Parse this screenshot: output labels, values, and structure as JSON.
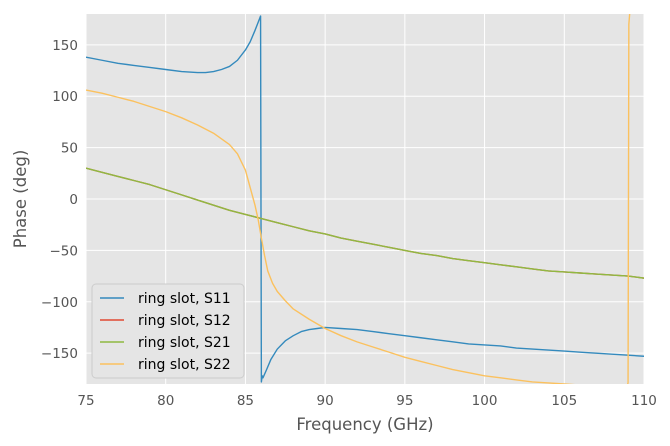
{
  "chart_data": {
    "type": "line",
    "title": "",
    "xlabel": "Frequency (GHz)",
    "ylabel": "Phase (deg)",
    "xlim": [
      75,
      110
    ],
    "ylim": [
      -180,
      180
    ],
    "xticks": [
      75,
      80,
      85,
      90,
      95,
      100,
      105,
      110
    ],
    "yticks": [
      -150,
      -100,
      -50,
      0,
      50,
      100,
      150
    ],
    "grid": true,
    "legend_position": "lower-left",
    "series": [
      {
        "name": "ring slot, S11",
        "color": "#348ABD",
        "x": [
          75,
          76,
          77,
          78,
          79,
          80,
          81,
          82,
          82.5,
          83,
          83.5,
          84,
          84.5,
          85,
          85.3,
          85.6,
          85.8,
          85.95,
          86.0,
          86.05,
          86.1,
          86.3,
          86.6,
          87,
          87.5,
          88,
          88.5,
          89,
          89.5,
          90,
          91,
          92,
          93,
          94,
          95,
          96,
          97,
          98,
          99,
          100,
          101,
          102,
          103,
          104,
          105,
          106,
          107,
          108,
          109,
          110
        ],
        "y": [
          138,
          135,
          132,
          130,
          128,
          126,
          124,
          123,
          123,
          124,
          126,
          129,
          135,
          145,
          153,
          164,
          172,
          178,
          -178,
          -172,
          -174,
          -167,
          -156,
          -146,
          -138,
          -133,
          -129,
          -127,
          -126,
          -125,
          -126,
          -127,
          -129,
          -131,
          -133,
          -135,
          -137,
          -139,
          -141,
          -142,
          -143,
          -145,
          -146,
          -147,
          -148,
          -149,
          -150,
          -151,
          -152,
          -153
        ]
      },
      {
        "name": "ring slot, S12",
        "color": "#E24A33",
        "x": [
          75,
          76,
          77,
          78,
          79,
          80,
          81,
          82,
          83,
          84,
          85,
          86,
          87,
          88,
          89,
          90,
          91,
          92,
          93,
          94,
          95,
          96,
          97,
          98,
          99,
          100,
          101,
          102,
          103,
          104,
          105,
          106,
          107,
          108,
          109,
          110
        ],
        "y": [
          30,
          26,
          22,
          18,
          14,
          9,
          4,
          -1,
          -6,
          -11,
          -15,
          -19,
          -23,
          -27,
          -31,
          -34,
          -38,
          -41,
          -44,
          -47,
          -50,
          -53,
          -55,
          -58,
          -60,
          -62,
          -64,
          -66,
          -68,
          -70,
          -71,
          -72,
          -73,
          -74,
          -75,
          -77
        ]
      },
      {
        "name": "ring slot, S21",
        "color": "#8EBA42",
        "x": [
          75,
          76,
          77,
          78,
          79,
          80,
          81,
          82,
          83,
          84,
          85,
          86,
          87,
          88,
          89,
          90,
          91,
          92,
          93,
          94,
          95,
          96,
          97,
          98,
          99,
          100,
          101,
          102,
          103,
          104,
          105,
          106,
          107,
          108,
          109,
          110
        ],
        "y": [
          30,
          26,
          22,
          18,
          14,
          9,
          4,
          -1,
          -6,
          -11,
          -15,
          -19,
          -23,
          -27,
          -31,
          -34,
          -38,
          -41,
          -44,
          -47,
          -50,
          -53,
          -55,
          -58,
          -60,
          -62,
          -64,
          -66,
          -68,
          -70,
          -71,
          -72,
          -73,
          -74,
          -75,
          -77
        ]
      },
      {
        "name": "ring slot, S22",
        "color": "#FBC15E",
        "x": [
          75,
          76,
          77,
          78,
          79,
          80,
          81,
          82,
          83,
          84,
          84.5,
          85,
          85.3,
          85.6,
          85.8,
          86.0,
          86.2,
          86.4,
          86.7,
          87,
          87.5,
          88,
          89,
          90,
          91,
          92,
          93,
          94,
          95,
          96,
          97,
          98,
          99,
          100,
          101,
          102,
          103,
          104,
          105,
          106,
          107,
          108,
          108.5,
          108.9,
          109.0,
          109.05,
          109.1,
          109.2
        ],
        "y": [
          106,
          103,
          99,
          95,
          90,
          85,
          79,
          72,
          64,
          53,
          44,
          28,
          11,
          -6,
          -20,
          -38,
          -55,
          -70,
          -82,
          -90,
          -99,
          -107,
          -117,
          -126,
          -133,
          -139,
          -144,
          -149,
          -154,
          -158,
          -162,
          -166,
          -169,
          -172,
          -174,
          -176,
          -178,
          -179,
          -180,
          -181,
          -182,
          -183,
          -183,
          -183,
          -179,
          170,
          180,
          185
        ]
      }
    ]
  }
}
